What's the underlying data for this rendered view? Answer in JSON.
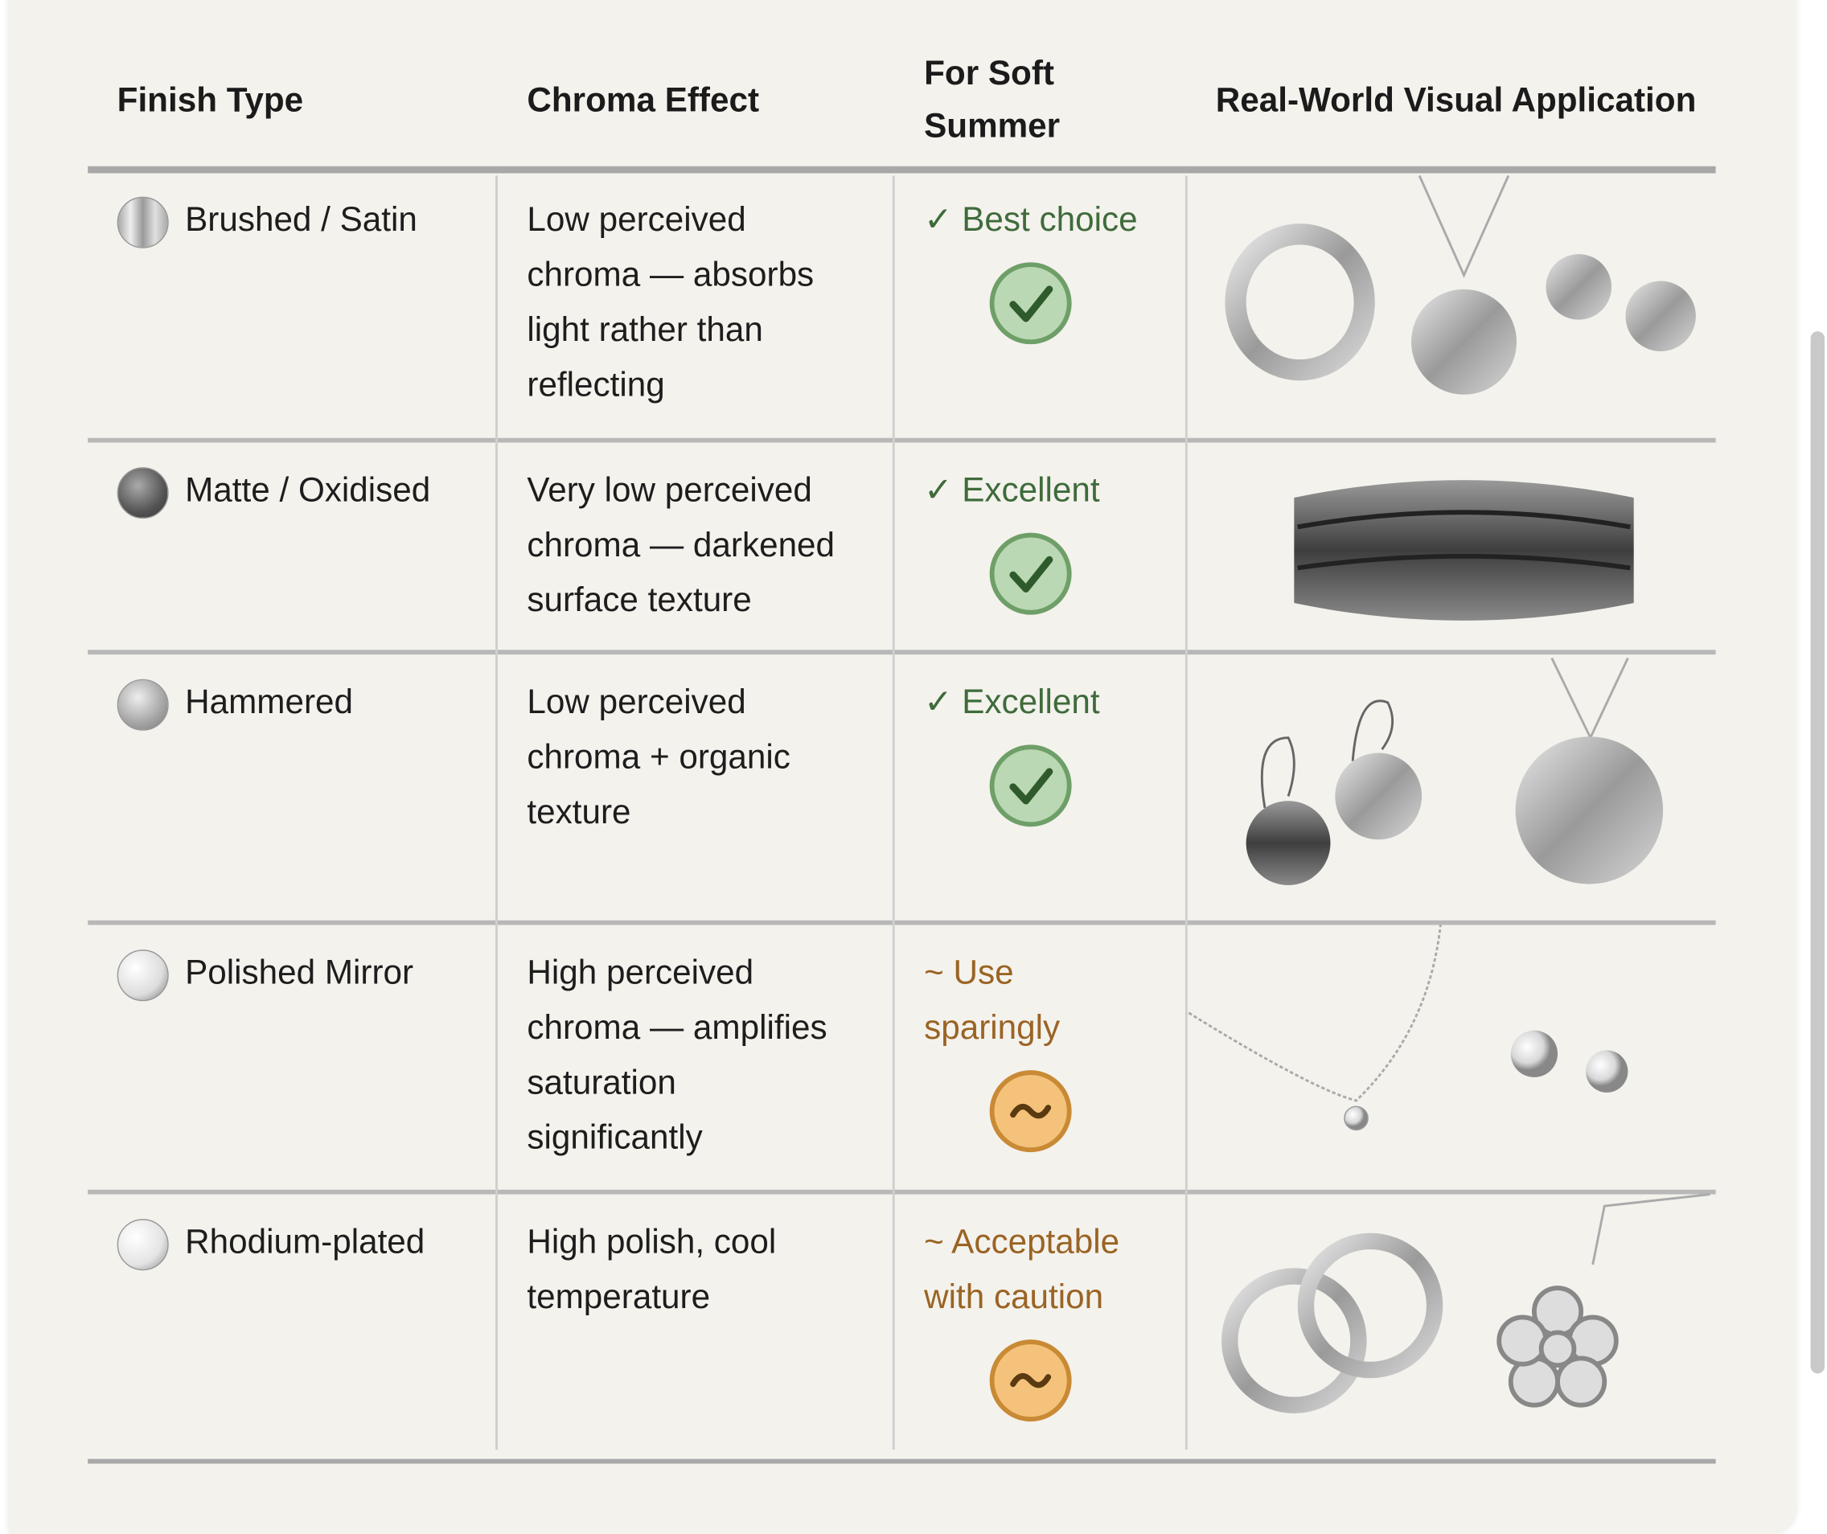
{
  "header": {
    "columns": [
      "Finish Type",
      "Chroma Effect",
      "For Soft Summer",
      "Real-World Visual Application"
    ]
  },
  "table": {
    "rows": [
      {
        "finish": "Brushed / Satin",
        "chroma": "Low perceived chroma — absorbs light rather than reflecting",
        "verdict": "✓ Best choice"
      },
      {
        "finish": "Matte / Oxidised",
        "chroma": "Very low perceived chroma — darkened surface texture",
        "verdict": "✓ Excellent"
      },
      {
        "finish": "Hammered",
        "chroma": "Low perceived chroma + organic texture",
        "verdict": "✓ Excellent"
      },
      {
        "finish": "Polished Mirror",
        "chroma": "High perceived chroma — amplifies saturation significantly",
        "verdict": "~ Use sparingly"
      },
      {
        "finish": "Rhodium-plated",
        "chroma": "High polish, cool temperature",
        "verdict": "~ Acceptable with caution"
      }
    ]
  }
}
